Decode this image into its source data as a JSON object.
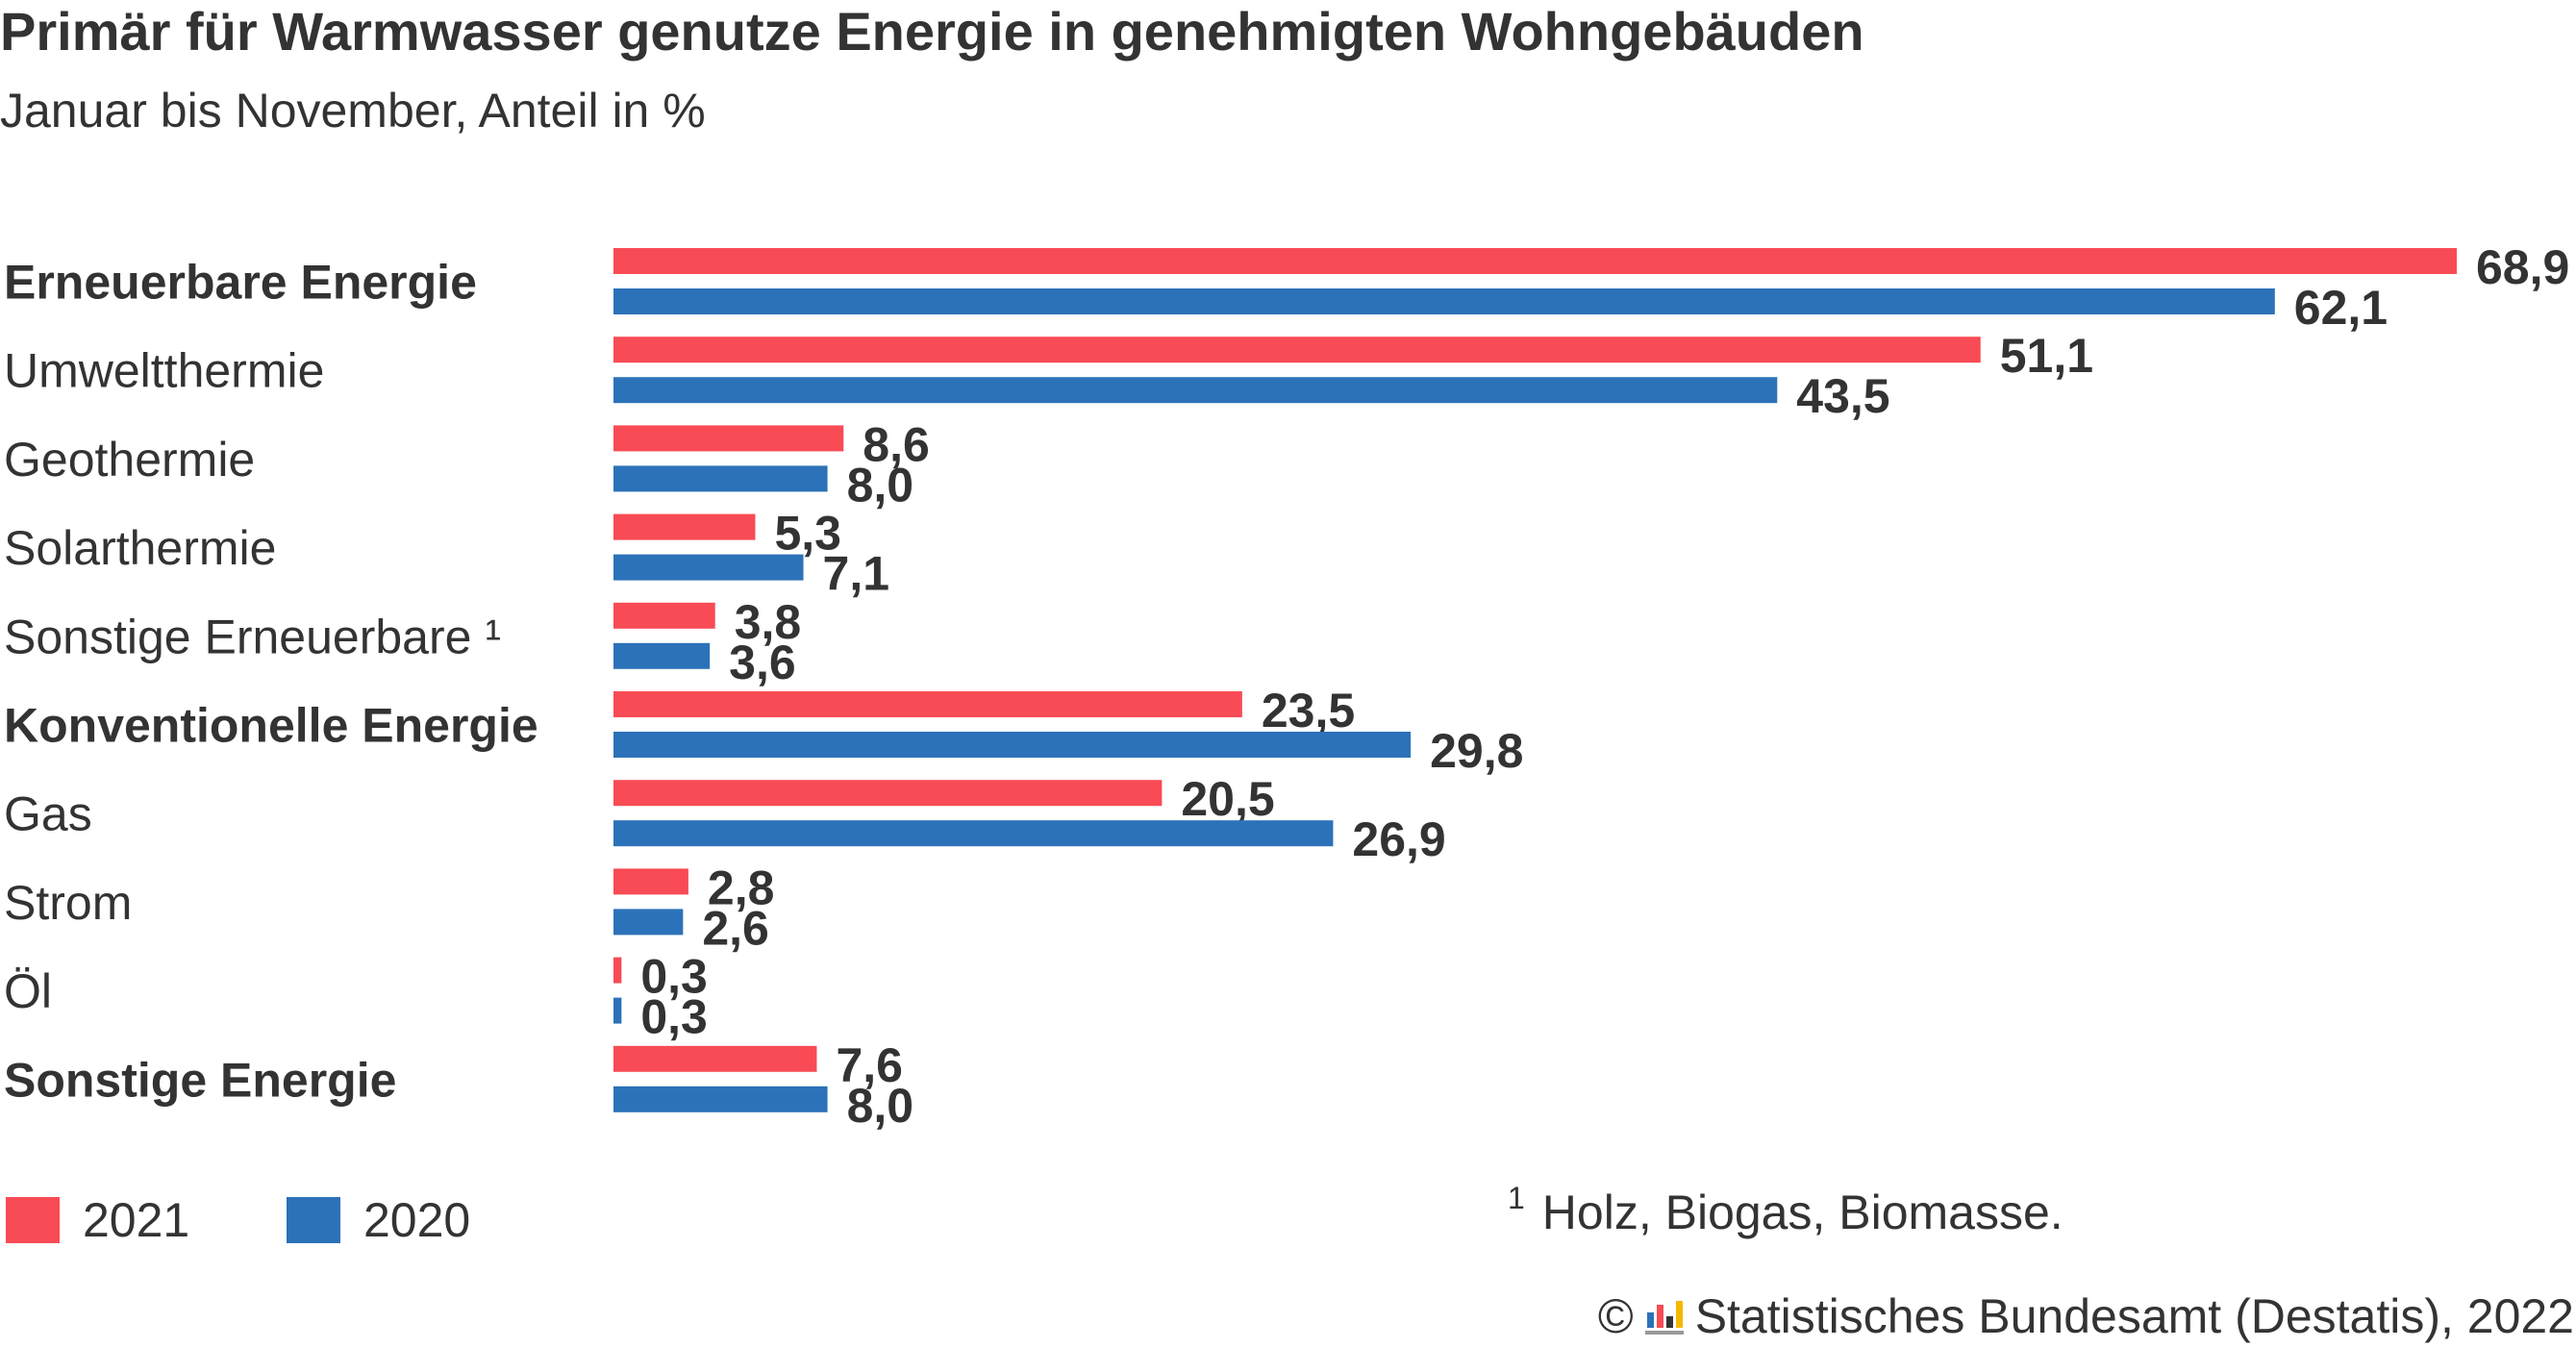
{
  "title": "Primär für Warmwasser genutze Energie in genehmigten Wohngebäuden",
  "subtitle": "Januar bis November, Anteil in %",
  "colors": {
    "series_2021": "#f84b55",
    "series_2020": "#2c72b8",
    "text": "#333333"
  },
  "chart_data": {
    "type": "bar",
    "orientation": "horizontal",
    "categories": [
      "Erneuerbare Energie",
      "Umweltthermie",
      "Geothermie",
      "Solarthermie",
      "Sonstige Erneuerbare ¹",
      "Konventionelle Energie",
      "Gas",
      "Strom",
      "Öl",
      "Sonstige Energie"
    ],
    "bold_categories": [
      "Erneuerbare Energie",
      "Konventionelle Energie",
      "Sonstige Energie"
    ],
    "series": [
      {
        "name": "2021",
        "values": [
          68.9,
          51.1,
          8.6,
          5.3,
          3.8,
          23.5,
          20.5,
          2.8,
          0.3,
          7.6
        ],
        "labels": [
          "68,9",
          "51,1",
          "8,6",
          "5,3",
          "3,8",
          "23,5",
          "20,5",
          "2,8",
          "0,3",
          "7,6"
        ]
      },
      {
        "name": "2020",
        "values": [
          62.1,
          43.5,
          8.0,
          7.1,
          3.6,
          29.8,
          26.9,
          2.6,
          0.3,
          8.0
        ],
        "labels": [
          "62,1",
          "43,5",
          "8,0",
          "7,1",
          "3,6",
          "29,8",
          "26,9",
          "2,6",
          "0,3",
          "8,0"
        ]
      }
    ],
    "xlim": [
      0,
      68.9
    ],
    "grid": false,
    "legend_position": "bottom-left"
  },
  "legend": {
    "label_2021": "2021",
    "label_2020": "2020"
  },
  "footnote": {
    "marker": "1",
    "text": "Holz, Biogas, Biomasse."
  },
  "source": {
    "copyright": "©",
    "logo_icon": "destatis-logo-icon",
    "text": "Statistisches Bundesamt (Destatis), 2022"
  }
}
